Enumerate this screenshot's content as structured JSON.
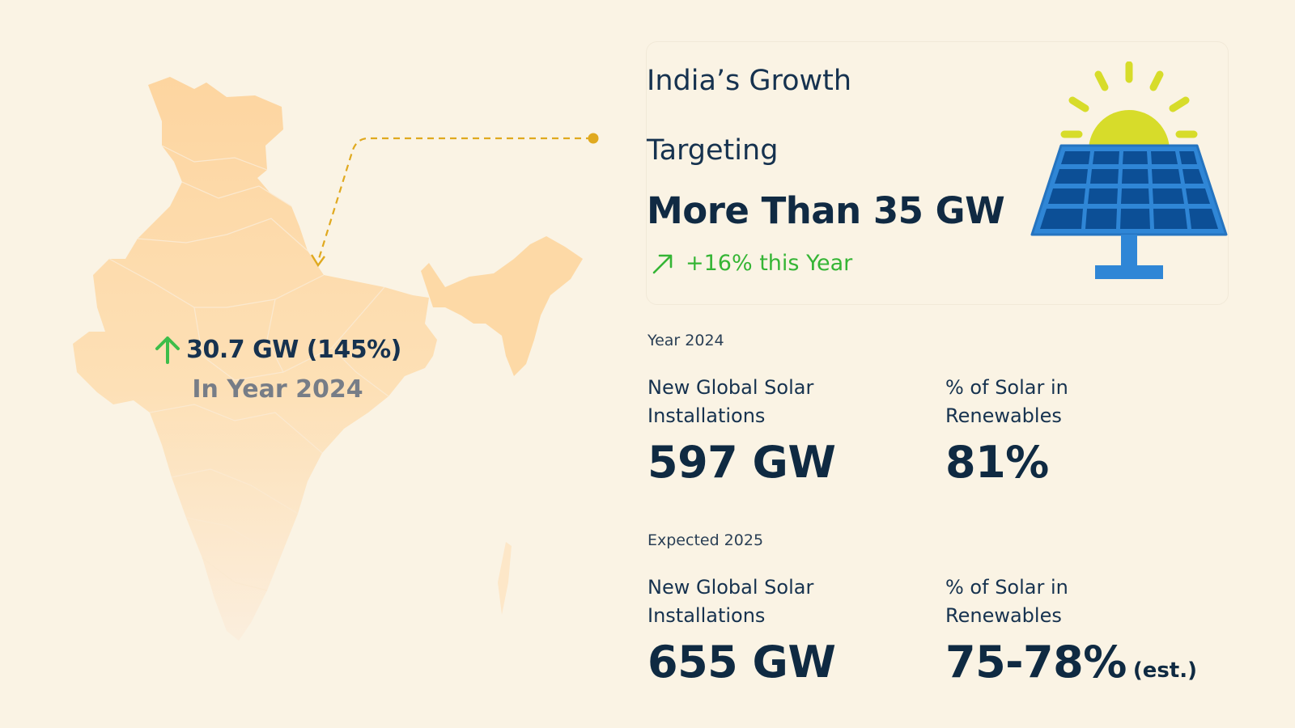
{
  "india_map": {
    "stat_value": "30.7 GW (145%)",
    "stat_sub": "In Year 2024",
    "arrow_icon": "up-arrow-icon",
    "arrow_color": "#3dbd4a",
    "map_color": "#fcd9a4"
  },
  "growth": {
    "title": "India’s Growth",
    "target_label": "Targeting",
    "target_value": "More Than 35 GW",
    "change_text": "+16% this Year",
    "change_color": "#35b535",
    "icon": "solar-panel-icon"
  },
  "stats": [
    {
      "section": "Year 2024",
      "items": [
        {
          "label_line1": "New Global Solar",
          "label_line2": "Installations",
          "value": "597 GW",
          "note": ""
        },
        {
          "label_line1": "% of Solar in",
          "label_line2": "Renewables",
          "value": "81%",
          "note": ""
        }
      ]
    },
    {
      "section": "Expected 2025",
      "items": [
        {
          "label_line1": "New Global Solar",
          "label_line2": "Installations",
          "value": "655 GW",
          "note": ""
        },
        {
          "label_line1": "% of Solar in",
          "label_line2": "Renewables",
          "value": "75-78%",
          "note": "(est.)"
        }
      ]
    }
  ],
  "colors": {
    "background": "#faf3e4",
    "text_dark": "#102a43",
    "connector": "#e0a91f",
    "panel_blue": "#2f86d6",
    "sun_yellow": "#d7dc2a"
  }
}
